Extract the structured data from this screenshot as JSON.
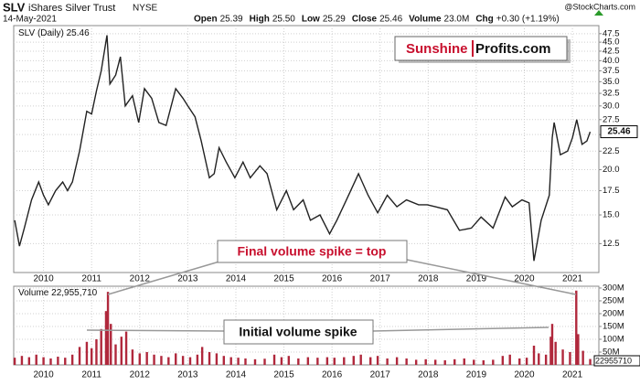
{
  "header": {
    "symbol": "SLV",
    "name": "iShares Silver Trust",
    "exchange": "NYSE",
    "date": "14-May-2021",
    "source": "@StockCharts.com",
    "quote": [
      {
        "label": "Open",
        "value": "25.39"
      },
      {
        "label": "High",
        "value": "25.50"
      },
      {
        "label": "Low",
        "value": "25.29"
      },
      {
        "label": "Close",
        "value": "25.46"
      },
      {
        "label": "Volume",
        "value": "23.0M"
      },
      {
        "label": "Chg",
        "value": "+0.30 (+1.19%)"
      }
    ]
  },
  "logo": [
    "Sunshine",
    "Profits.com"
  ],
  "annotations": [
    "Final volume spike = top",
    "Initial volume spike"
  ],
  "chart_data": [
    {
      "type": "line",
      "log_scale": true,
      "grid": true,
      "x": [
        2009.4,
        2009.5,
        2009.6,
        2009.75,
        2009.9,
        2010.0,
        2010.1,
        2010.25,
        2010.4,
        2010.5,
        2010.6,
        2010.75,
        2010.9,
        2011.0,
        2011.1,
        2011.2,
        2011.32,
        2011.38,
        2011.5,
        2011.6,
        2011.7,
        2011.85,
        2011.98,
        2012.1,
        2012.25,
        2012.4,
        2012.55,
        2012.75,
        2012.9,
        2013.0,
        2013.15,
        2013.28,
        2013.45,
        2013.55,
        2013.65,
        2013.8,
        2013.98,
        2014.15,
        2014.3,
        2014.5,
        2014.65,
        2014.85,
        2015.05,
        2015.2,
        2015.4,
        2015.55,
        2015.75,
        2015.95,
        2016.1,
        2016.3,
        2016.55,
        2016.75,
        2016.95,
        2017.15,
        2017.35,
        2017.55,
        2017.8,
        2017.98,
        2018.15,
        2018.4,
        2018.65,
        2018.9,
        2019.1,
        2019.35,
        2019.6,
        2019.75,
        2019.95,
        2020.1,
        2020.2,
        2020.35,
        2020.52,
        2020.58,
        2020.62,
        2020.75,
        2020.9,
        2021.0,
        2021.09,
        2021.2,
        2021.3,
        2021.37
      ],
      "series": [
        {
          "name": "SLV (Daily)",
          "color": "#222222",
          "values": [
            14.5,
            12.3,
            13.8,
            16.5,
            18.5,
            17.0,
            16.0,
            17.5,
            18.5,
            17.5,
            18.5,
            22.5,
            29.0,
            28.5,
            33.0,
            37.5,
            47.0,
            34.5,
            36.5,
            41.0,
            30.0,
            32.0,
            27.0,
            33.5,
            31.5,
            27.0,
            26.5,
            33.5,
            31.5,
            30.0,
            28.0,
            24.0,
            19.0,
            19.5,
            23.0,
            21.0,
            19.0,
            21.0,
            19.0,
            20.5,
            19.5,
            15.5,
            17.5,
            15.5,
            16.5,
            14.5,
            15.0,
            13.3,
            14.5,
            16.5,
            19.5,
            17.0,
            15.2,
            17.0,
            15.8,
            16.5,
            16.0,
            16.0,
            15.8,
            15.5,
            13.6,
            13.8,
            14.8,
            13.8,
            16.8,
            15.8,
            16.5,
            16.2,
            11.2,
            14.5,
            17.0,
            24.5,
            27.0,
            22.0,
            22.5,
            24.5,
            27.5,
            23.5,
            24.0,
            25.46
          ]
        }
      ],
      "xlim": [
        2009.38,
        2021.55
      ],
      "xticks": [
        2010,
        2011,
        2012,
        2013,
        2014,
        2015,
        2016,
        2017,
        2018,
        2019,
        2020,
        2021
      ],
      "ylim": [
        10.4,
        50
      ],
      "yticks": [
        47.5,
        {
          "value": 45,
          "label": "45.0"
        },
        42.5,
        {
          "value": 40,
          "label": "40.0"
        },
        37.5,
        {
          "value": 35,
          "label": "35.0"
        },
        32.5,
        {
          "value": 30,
          "label": "30.0"
        },
        27.5,
        {
          "value": 25,
          "label": "25.0"
        },
        22.5,
        {
          "value": 20,
          "label": "20.0"
        },
        17.5,
        {
          "value": 15,
          "label": "15.0"
        },
        12.5
      ]
    },
    {
      "type": "bar",
      "grid": true,
      "name": "Volume",
      "legend_value": "22,955,710",
      "last_tag": "22955710",
      "color": "#b0283c",
      "x": [
        2009.4,
        2009.55,
        2009.7,
        2009.85,
        2010.0,
        2010.15,
        2010.3,
        2010.45,
        2010.6,
        2010.75,
        2010.9,
        2011.0,
        2011.1,
        2011.2,
        2011.3,
        2011.34,
        2011.4,
        2011.5,
        2011.62,
        2011.72,
        2011.85,
        2012.0,
        2012.15,
        2012.3,
        2012.45,
        2012.6,
        2012.75,
        2012.9,
        2013.05,
        2013.2,
        2013.3,
        2013.45,
        2013.6,
        2013.75,
        2013.9,
        2014.05,
        2014.2,
        2014.4,
        2014.6,
        2014.8,
        2014.95,
        2015.1,
        2015.3,
        2015.5,
        2015.7,
        2015.9,
        2016.05,
        2016.25,
        2016.45,
        2016.6,
        2016.8,
        2016.95,
        2017.15,
        2017.35,
        2017.55,
        2017.75,
        2017.95,
        2018.15,
        2018.35,
        2018.55,
        2018.75,
        2018.95,
        2019.15,
        2019.35,
        2019.55,
        2019.7,
        2019.9,
        2020.05,
        2020.2,
        2020.3,
        2020.45,
        2020.55,
        2020.58,
        2020.65,
        2020.8,
        2020.95,
        2021.08,
        2021.12,
        2021.22,
        2021.37
      ],
      "values": [
        28,
        35,
        30,
        40,
        30,
        25,
        32,
        28,
        40,
        70,
        90,
        65,
        100,
        140,
        210,
        285,
        160,
        80,
        110,
        130,
        60,
        45,
        50,
        40,
        35,
        30,
        45,
        35,
        30,
        40,
        70,
        50,
        45,
        35,
        30,
        28,
        25,
        22,
        24,
        40,
        30,
        35,
        25,
        30,
        28,
        30,
        28,
        30,
        35,
        40,
        30,
        35,
        25,
        30,
        25,
        20,
        22,
        20,
        18,
        22,
        25,
        20,
        18,
        20,
        35,
        40,
        25,
        28,
        75,
        45,
        40,
        110,
        160,
        90,
        60,
        50,
        290,
        120,
        55,
        22.95571
      ],
      "xlim": [
        2009.38,
        2021.55
      ],
      "xticks": [
        2010,
        2011,
        2012,
        2013,
        2014,
        2015,
        2016,
        2017,
        2018,
        2019,
        2020,
        2021
      ],
      "ylim": [
        0,
        307
      ],
      "yticks": [
        {
          "value": 50,
          "label": "50M"
        },
        {
          "value": 100,
          "label": "100M"
        },
        {
          "value": 150,
          "label": "150M"
        },
        {
          "value": 200,
          "label": "200M"
        },
        {
          "value": 250,
          "label": "250M"
        },
        {
          "value": 300,
          "label": "300M"
        }
      ]
    }
  ]
}
